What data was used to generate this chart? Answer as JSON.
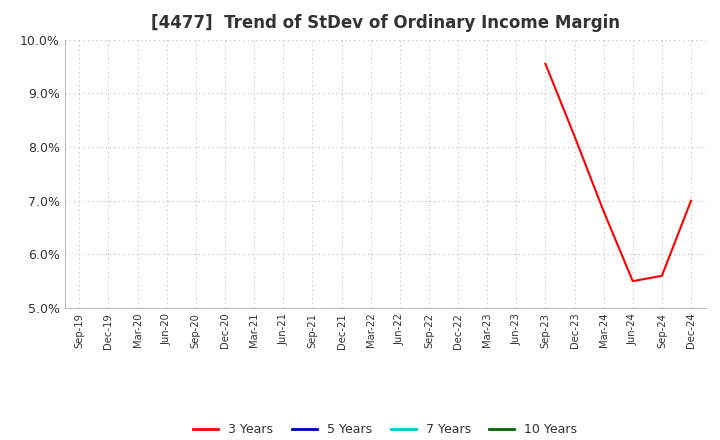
{
  "title": "[4477]  Trend of StDev of Ordinary Income Margin",
  "title_fontsize": 12,
  "title_color": "#333333",
  "background_color": "#ffffff",
  "plot_bg_color": "#ffffff",
  "ylim": [
    0.05,
    0.1
  ],
  "yticks": [
    0.05,
    0.06,
    0.07,
    0.08,
    0.09,
    0.1
  ],
  "x_labels": [
    "Sep-19",
    "Dec-19",
    "Mar-20",
    "Jun-20",
    "Sep-20",
    "Dec-20",
    "Mar-21",
    "Jun-21",
    "Sep-21",
    "Dec-21",
    "Mar-22",
    "Jun-22",
    "Sep-22",
    "Dec-22",
    "Mar-23",
    "Jun-23",
    "Sep-23",
    "Dec-23",
    "Mar-24",
    "Jun-24",
    "Sep-24",
    "Dec-24"
  ],
  "series_3yr": {
    "color": "#ff0000",
    "label": "3 Years",
    "x_indices": [
      16,
      17,
      18,
      19,
      20,
      21
    ],
    "values": [
      0.0955,
      0.082,
      0.068,
      0.055,
      0.056,
      0.07
    ]
  },
  "series_5yr": {
    "color": "#0000bb",
    "label": "5 Years",
    "x_indices": [],
    "values": []
  },
  "series_7yr": {
    "color": "#00cccc",
    "label": "7 Years",
    "x_indices": [],
    "values": []
  },
  "series_10yr": {
    "color": "#006600",
    "label": "10 Years",
    "x_indices": [],
    "values": []
  },
  "grid_color": "#bbbbbb",
  "legend_fontsize": 9
}
